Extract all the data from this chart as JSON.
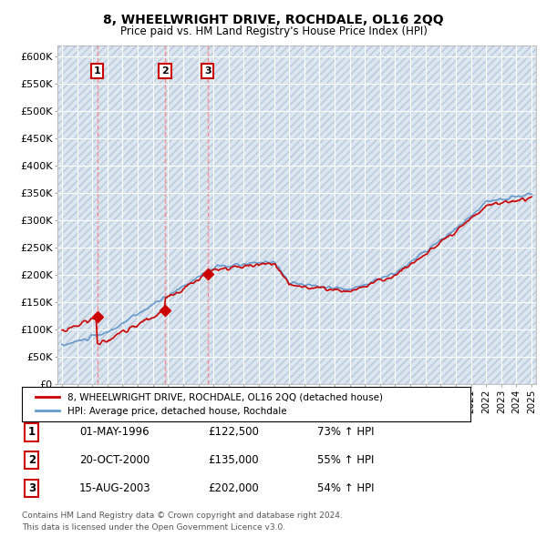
{
  "title": "8, WHEELWRIGHT DRIVE, ROCHDALE, OL16 2QQ",
  "subtitle": "Price paid vs. HM Land Registry's House Price Index (HPI)",
  "yticks": [
    0,
    50000,
    100000,
    150000,
    200000,
    250000,
    300000,
    350000,
    400000,
    450000,
    500000,
    550000,
    600000
  ],
  "ytick_labels": [
    "£0",
    "£50K",
    "£100K",
    "£150K",
    "£200K",
    "£250K",
    "£300K",
    "£350K",
    "£400K",
    "£450K",
    "£500K",
    "£550K",
    "£600K"
  ],
  "xlim_start": 1993.7,
  "xlim_end": 2025.3,
  "ylim_min": 0,
  "ylim_max": 620000,
  "sale_dates": [
    1996.33,
    2000.8,
    2003.62
  ],
  "sale_prices": [
    122500,
    135000,
    202000
  ],
  "sale_labels": [
    "1",
    "2",
    "3"
  ],
  "sale_date_strs": [
    "01-MAY-1996",
    "20-OCT-2000",
    "15-AUG-2003"
  ],
  "sale_price_strs": [
    "£122,500",
    "£135,000",
    "£202,000"
  ],
  "sale_hpi_strs": [
    "73% ↑ HPI",
    "55% ↑ HPI",
    "54% ↑ HPI"
  ],
  "red_line_color": "#cc0000",
  "blue_line_color": "#6699cc",
  "legend_label_red": "8, WHEELWRIGHT DRIVE, ROCHDALE, OL16 2QQ (detached house)",
  "legend_label_blue": "HPI: Average price, detached house, Rochdale",
  "footnote1": "Contains HM Land Registry data © Crown copyright and database right 2024.",
  "footnote2": "This data is licensed under the Open Government Licence v3.0.",
  "plot_bg_color": "#dce6f0"
}
